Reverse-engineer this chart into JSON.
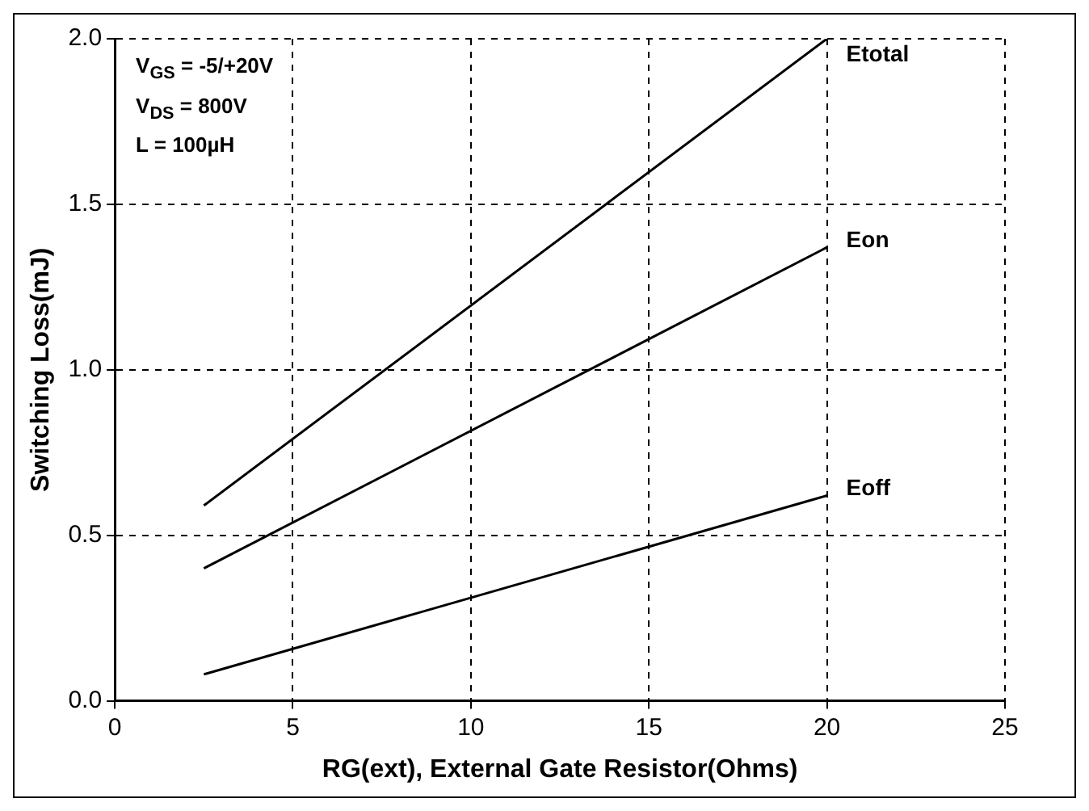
{
  "chart_data": {
    "type": "line",
    "xlabel": "RG(ext), External Gate Resistor(Ohms)",
    "ylabel": "Switching Loss(mJ)",
    "x": [
      2.5,
      20
    ],
    "series": [
      {
        "name": "Etotal",
        "color": "#000000",
        "values": [
          0.59,
          2.0
        ]
      },
      {
        "name": "Eon",
        "color": "#000000",
        "values": [
          0.4,
          1.37
        ]
      },
      {
        "name": "Eoff",
        "color": "#000000",
        "values": [
          0.08,
          0.62
        ]
      }
    ],
    "xlim": [
      0,
      25
    ],
    "xticks": [
      0,
      5,
      10,
      15,
      20,
      25
    ],
    "ylim": [
      0,
      2
    ],
    "yticks": [
      {
        "value": 0,
        "label": "0.0"
      },
      {
        "value": 0.5,
        "label": "0.5"
      },
      {
        "value": 1,
        "label": "1.0"
      },
      {
        "value": 1.5,
        "label": "1.5"
      },
      {
        "value": 2,
        "label": "2.0"
      }
    ],
    "grid": true,
    "legend": false,
    "marker": "none",
    "line_style": "solid",
    "annotations": [
      "V$_{GS}$ = -5/+20V",
      "V$_{DS}$ = 800V",
      "L = 100µH"
    ]
  }
}
